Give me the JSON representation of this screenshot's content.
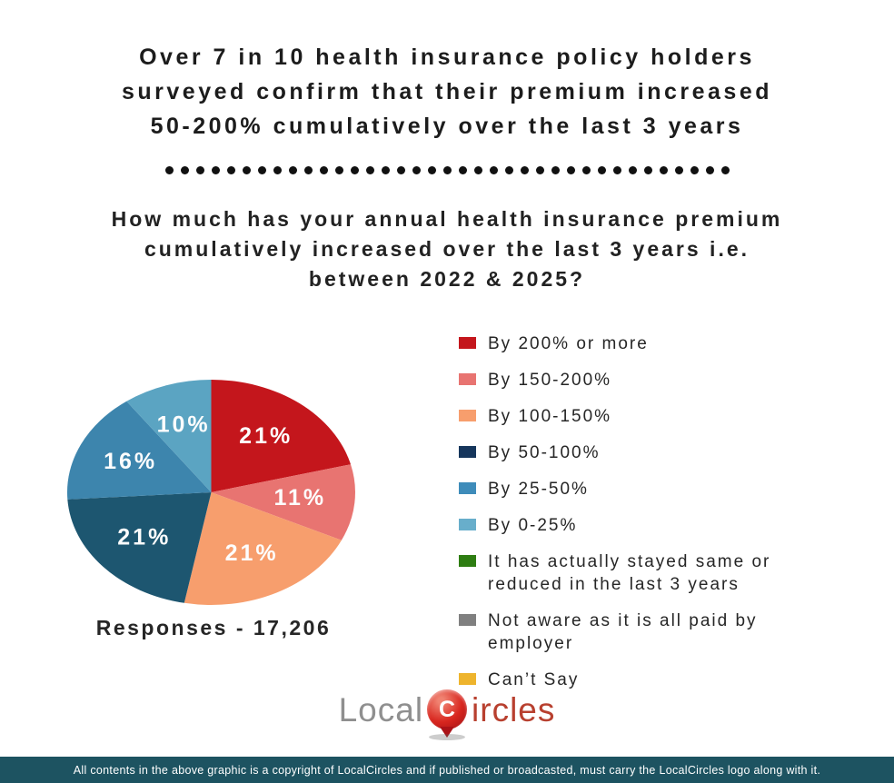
{
  "header": {
    "title_lines": [
      "Over 7 in 10 health insurance policy holders",
      "surveyed confirm that their premium increased",
      "50-200% cumulatively over the last 3 years"
    ],
    "question_lines": [
      "How much has your annual health insurance premium",
      "cumulatively increased over the last 3 years i.e.",
      "between 2022 & 2025?"
    ]
  },
  "chart_data": {
    "type": "pie",
    "title": "Over 7 in 10 health insurance policy holders surveyed confirm that their premium increased 50-200% cumulatively over the last 3 years",
    "question": "How much has your annual health insurance premium cumulatively increased over the last 3 years i.e. between 2022 & 2025?",
    "categories": [
      "By 200% or more",
      "By 150-200%",
      "By 100-150%",
      "By 50-100%",
      "By 25-50%",
      "By 0-25%"
    ],
    "values": [
      21,
      11,
      21,
      21,
      16,
      10
    ],
    "slice_colors": [
      "#c4161c",
      "#e87471",
      "#f79e6d",
      "#1d5670",
      "#3d85ad",
      "#5ba4c2"
    ],
    "start_angle_deg": 0,
    "direction": "clockwise",
    "legend_position": "right",
    "responses": 17206
  },
  "legend": {
    "items": [
      {
        "label": "By 200% or more",
        "color": "#c4161c"
      },
      {
        "label": "By 150-200%",
        "color": "#e87471"
      },
      {
        "label": "By 100-150%",
        "color": "#f79e6d"
      },
      {
        "label": "By 50-100%",
        "color": "#16365c"
      },
      {
        "label": "By 25-50%",
        "color": "#3e8cba"
      },
      {
        "label": "By 0-25%",
        "color": "#68aecb"
      },
      {
        "label": "It has actually stayed same or reduced in the last 3 years",
        "color": "#2e7d12"
      },
      {
        "label": "Not aware as it is all paid by employer",
        "color": "#808080"
      },
      {
        "label": "Can’t Say",
        "color": "#eeb42d"
      }
    ]
  },
  "responses_label": "Responses - 17,206",
  "logo": {
    "prefix": "Local",
    "pin_letter": "C",
    "suffix": "ircles",
    "gray": "#8f8f8f",
    "red": "#b8402f"
  },
  "footer": {
    "text": "All contents in the above graphic is a copyright of LocalCircles and if published or broadcasted, must carry the LocalCircles logo along with it.",
    "bg": "#1d5361"
  },
  "separator": {
    "dot_count": 37,
    "dot_color": "#111111"
  }
}
